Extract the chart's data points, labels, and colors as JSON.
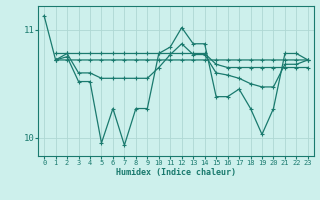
{
  "xlabel": "Humidex (Indice chaleur)",
  "bg_color": "#cdf0ec",
  "grid_color": "#afd8d3",
  "line_color": "#1a7a6e",
  "xlim": [
    -0.5,
    23.5
  ],
  "ylim": [
    9.83,
    11.22
  ],
  "yticks": [
    10,
    11
  ],
  "xticks": [
    0,
    1,
    2,
    3,
    4,
    5,
    6,
    7,
    8,
    9,
    10,
    11,
    12,
    13,
    14,
    15,
    16,
    17,
    18,
    19,
    20,
    21,
    22,
    23
  ],
  "line1_x": [
    0,
    1,
    2,
    3,
    4,
    5,
    6,
    7,
    8,
    9,
    10,
    11,
    12,
    13,
    14,
    15,
    16,
    17,
    18,
    19,
    20,
    21,
    22,
    23
  ],
  "line1_y": [
    11.13,
    10.72,
    10.72,
    10.72,
    10.72,
    10.72,
    10.72,
    10.72,
    10.72,
    10.72,
    10.72,
    10.72,
    10.72,
    10.72,
    10.72,
    10.72,
    10.72,
    10.72,
    10.72,
    10.72,
    10.72,
    10.72,
    10.72,
    10.72
  ],
  "line2_x": [
    1,
    2,
    3,
    4,
    5,
    6,
    7,
    8,
    9,
    10,
    11,
    12,
    13,
    14,
    15,
    16,
    17,
    18,
    19,
    20,
    21,
    22,
    23
  ],
  "line2_y": [
    10.78,
    10.78,
    10.78,
    10.78,
    10.78,
    10.78,
    10.78,
    10.78,
    10.78,
    10.78,
    10.78,
    10.78,
    10.78,
    10.78,
    10.68,
    10.65,
    10.65,
    10.65,
    10.65,
    10.65,
    10.65,
    10.65,
    10.65
  ],
  "line3_x": [
    1,
    2,
    3,
    4,
    5,
    6,
    7,
    8,
    9,
    10,
    11,
    12,
    13,
    14,
    15,
    16,
    17,
    18,
    19,
    20,
    21,
    22,
    23
  ],
  "line3_y": [
    10.72,
    10.78,
    10.6,
    10.6,
    10.55,
    10.55,
    10.55,
    10.55,
    10.55,
    10.65,
    10.77,
    10.87,
    10.77,
    10.77,
    10.6,
    10.58,
    10.55,
    10.5,
    10.47,
    10.47,
    10.68,
    10.68,
    10.72
  ],
  "line4_x": [
    1,
    2,
    3,
    4,
    5,
    6,
    7,
    8,
    9,
    10,
    11,
    12,
    13,
    14,
    15,
    16,
    17,
    18,
    19,
    20,
    21,
    22,
    23
  ],
  "line4_y": [
    10.72,
    10.75,
    10.52,
    10.52,
    9.95,
    10.27,
    9.93,
    10.27,
    10.27,
    10.78,
    10.84,
    11.02,
    10.87,
    10.87,
    10.38,
    10.38,
    10.45,
    10.27,
    10.03,
    10.27,
    10.78,
    10.78,
    10.72
  ]
}
